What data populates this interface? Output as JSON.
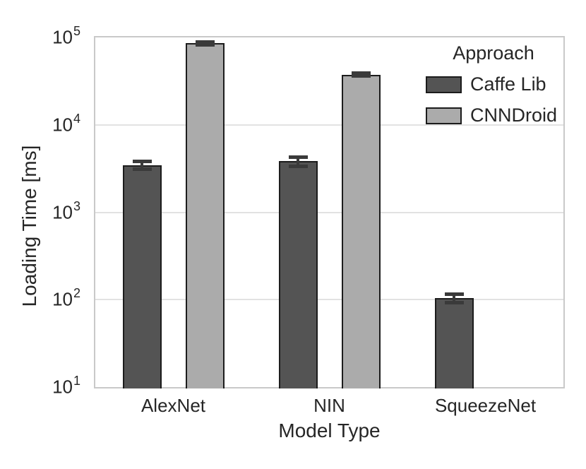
{
  "chart_data": {
    "type": "bar",
    "title": "",
    "xlabel": "Model Type",
    "ylabel": "Loading Time [ms]",
    "yscale": "log",
    "ylim": [
      10,
      100000
    ],
    "y_tick_exponents": [
      1,
      2,
      3,
      4,
      5
    ],
    "grid": "horizontal",
    "categories": [
      "AlexNet",
      "NIN",
      "SqueezeNet"
    ],
    "legend": {
      "title": "Approach",
      "position": "upper right"
    },
    "series": [
      {
        "name": "Caffe Lib",
        "color": "#545454",
        "edge_color": "#1c1c1c",
        "values": [
          3450,
          3850,
          104
        ],
        "error_low": [
          3100,
          3350,
          92
        ],
        "error_high": [
          3800,
          4300,
          115
        ]
      },
      {
        "name": "CNNDroid",
        "color": "#ababab",
        "edge_color": "#1c1c1c",
        "values": [
          86000,
          37300,
          null
        ],
        "error_low": [
          83000,
          36300,
          null
        ],
        "error_high": [
          88000,
          38800,
          null
        ]
      }
    ]
  },
  "colors": {
    "background": "#ffffff",
    "grid": "#e2e2e2",
    "spine": "#c9c9c9",
    "error_bar": "#3a3a3a",
    "text": "#262626"
  }
}
